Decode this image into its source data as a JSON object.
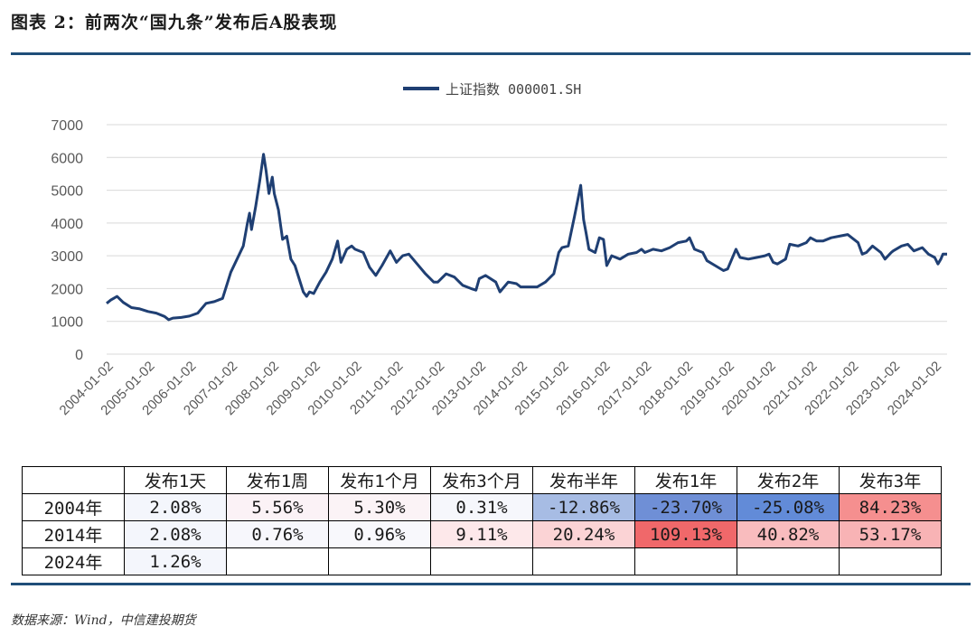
{
  "figure_title": "图表 2：前两次“国九条”发布后A股表现",
  "source": "数据来源：Wind，中信建投期货",
  "chart_data": {
    "type": "line",
    "series_name": "上证指数 000001.SH",
    "line_color": "#1f3f73",
    "ylim": [
      0,
      7000
    ],
    "y_ticks": [
      "0",
      "1000",
      "2000",
      "3000",
      "4000",
      "5000",
      "6000",
      "7000"
    ],
    "x_range": [
      2004.0,
      2024.3
    ],
    "x_ticks": [
      "2004-01-02",
      "2005-01-02",
      "2006-01-02",
      "2007-01-02",
      "2008-01-02",
      "2009-01-02",
      "2010-01-02",
      "2011-01-02",
      "2012-01-02",
      "2013-01-02",
      "2014-01-02",
      "2015-01-02",
      "2016-01-02",
      "2017-01-02",
      "2018-01-02",
      "2019-01-02",
      "2020-01-02",
      "2021-01-02",
      "2022-01-02",
      "2023-01-02",
      "2024-01-02"
    ],
    "points": [
      [
        2004.0,
        1550
      ],
      [
        2004.1,
        1650
      ],
      [
        2004.25,
        1760
      ],
      [
        2004.4,
        1580
      ],
      [
        2004.6,
        1420
      ],
      [
        2004.8,
        1380
      ],
      [
        2005.0,
        1300
      ],
      [
        2005.2,
        1250
      ],
      [
        2005.4,
        1150
      ],
      [
        2005.5,
        1050
      ],
      [
        2005.6,
        1100
      ],
      [
        2005.8,
        1120
      ],
      [
        2006.0,
        1160
      ],
      [
        2006.2,
        1250
      ],
      [
        2006.4,
        1550
      ],
      [
        2006.6,
        1600
      ],
      [
        2006.8,
        1700
      ],
      [
        2007.0,
        2500
      ],
      [
        2007.15,
        2900
      ],
      [
        2007.3,
        3300
      ],
      [
        2007.4,
        4000
      ],
      [
        2007.45,
        4300
      ],
      [
        2007.5,
        3800
      ],
      [
        2007.6,
        4500
      ],
      [
        2007.7,
        5300
      ],
      [
        2007.79,
        6100
      ],
      [
        2007.85,
        5600
      ],
      [
        2007.92,
        4900
      ],
      [
        2008.0,
        5400
      ],
      [
        2008.05,
        4900
      ],
      [
        2008.15,
        4400
      ],
      [
        2008.25,
        3500
      ],
      [
        2008.35,
        3600
      ],
      [
        2008.45,
        2900
      ],
      [
        2008.55,
        2700
      ],
      [
        2008.65,
        2300
      ],
      [
        2008.75,
        1900
      ],
      [
        2008.83,
        1760
      ],
      [
        2008.9,
        1900
      ],
      [
        2009.0,
        1850
      ],
      [
        2009.15,
        2200
      ],
      [
        2009.3,
        2500
      ],
      [
        2009.45,
        2900
      ],
      [
        2009.58,
        3450
      ],
      [
        2009.66,
        2800
      ],
      [
        2009.8,
        3200
      ],
      [
        2009.92,
        3300
      ],
      [
        2010.0,
        3200
      ],
      [
        2010.2,
        3100
      ],
      [
        2010.35,
        2650
      ],
      [
        2010.5,
        2400
      ],
      [
        2010.65,
        2700
      ],
      [
        2010.85,
        3150
      ],
      [
        2011.0,
        2800
      ],
      [
        2011.15,
        3000
      ],
      [
        2011.3,
        3050
      ],
      [
        2011.5,
        2750
      ],
      [
        2011.7,
        2450
      ],
      [
        2011.9,
        2200
      ],
      [
        2012.0,
        2200
      ],
      [
        2012.2,
        2450
      ],
      [
        2012.4,
        2350
      ],
      [
        2012.6,
        2100
      ],
      [
        2012.8,
        2000
      ],
      [
        2012.92,
        1950
      ],
      [
        2013.0,
        2300
      ],
      [
        2013.15,
        2400
      ],
      [
        2013.4,
        2200
      ],
      [
        2013.5,
        1900
      ],
      [
        2013.7,
        2200
      ],
      [
        2013.9,
        2150
      ],
      [
        2014.0,
        2050
      ],
      [
        2014.2,
        2050
      ],
      [
        2014.4,
        2050
      ],
      [
        2014.6,
        2200
      ],
      [
        2014.8,
        2450
      ],
      [
        2014.92,
        3100
      ],
      [
        2015.0,
        3250
      ],
      [
        2015.15,
        3300
      ],
      [
        2015.3,
        4200
      ],
      [
        2015.45,
        5150
      ],
      [
        2015.52,
        4100
      ],
      [
        2015.58,
        3700
      ],
      [
        2015.65,
        3200
      ],
      [
        2015.8,
        3100
      ],
      [
        2015.9,
        3550
      ],
      [
        2016.0,
        3500
      ],
      [
        2016.08,
        2700
      ],
      [
        2016.2,
        3000
      ],
      [
        2016.4,
        2900
      ],
      [
        2016.6,
        3050
      ],
      [
        2016.8,
        3100
      ],
      [
        2016.92,
        3200
      ],
      [
        2017.0,
        3100
      ],
      [
        2017.2,
        3200
      ],
      [
        2017.4,
        3150
      ],
      [
        2017.6,
        3250
      ],
      [
        2017.8,
        3400
      ],
      [
        2018.0,
        3450
      ],
      [
        2018.08,
        3550
      ],
      [
        2018.2,
        3200
      ],
      [
        2018.4,
        3100
      ],
      [
        2018.5,
        2850
      ],
      [
        2018.7,
        2700
      ],
      [
        2018.9,
        2550
      ],
      [
        2019.0,
        2600
      ],
      [
        2019.2,
        3200
      ],
      [
        2019.3,
        2950
      ],
      [
        2019.5,
        2900
      ],
      [
        2019.7,
        2950
      ],
      [
        2019.9,
        3000
      ],
      [
        2020.0,
        3050
      ],
      [
        2020.1,
        2800
      ],
      [
        2020.2,
        2750
      ],
      [
        2020.4,
        2900
      ],
      [
        2020.5,
        3350
      ],
      [
        2020.7,
        3300
      ],
      [
        2020.9,
        3400
      ],
      [
        2021.0,
        3550
      ],
      [
        2021.15,
        3450
      ],
      [
        2021.3,
        3450
      ],
      [
        2021.5,
        3550
      ],
      [
        2021.7,
        3600
      ],
      [
        2021.9,
        3650
      ],
      [
        2022.0,
        3550
      ],
      [
        2022.15,
        3400
      ],
      [
        2022.25,
        3050
      ],
      [
        2022.35,
        3100
      ],
      [
        2022.5,
        3300
      ],
      [
        2022.7,
        3100
      ],
      [
        2022.8,
        2900
      ],
      [
        2022.95,
        3100
      ],
      [
        2023.0,
        3150
      ],
      [
        2023.2,
        3300
      ],
      [
        2023.35,
        3350
      ],
      [
        2023.5,
        3150
      ],
      [
        2023.7,
        3250
      ],
      [
        2023.85,
        3050
      ],
      [
        2024.0,
        2950
      ],
      [
        2024.08,
        2750
      ],
      [
        2024.15,
        2900
      ],
      [
        2024.2,
        3050
      ],
      [
        2024.3,
        3050
      ]
    ]
  },
  "table": {
    "headers": [
      "",
      "发布1天",
      "发布1周",
      "发布1个月",
      "发布3个月",
      "发布半年",
      "发布1年",
      "发布2年",
      "发布3年"
    ],
    "rows": [
      {
        "label": "2004年",
        "cells": [
          "2.08%",
          "5.56%",
          "5.30%",
          "0.31%",
          "-12.86%",
          "-23.70%",
          "-25.08%",
          "84.23%"
        ],
        "colors": [
          "#f4f6fc",
          "#fbf2f6",
          "#fbf3f6",
          "#f6f7fc",
          "#a7bce4",
          "#6f8fd6",
          "#628bd8",
          "#f58f8f"
        ]
      },
      {
        "label": "2014年",
        "cells": [
          "2.08%",
          "0.76%",
          "0.96%",
          "9.11%",
          "20.24%",
          "109.13%",
          "40.82%",
          "53.17%"
        ],
        "colors": [
          "#f4f6fc",
          "#f7f7fc",
          "#f8f8fc",
          "#fde8ea",
          "#fbd3d5",
          "#f0686a",
          "#f9bcbe",
          "#f8b3b5"
        ]
      },
      {
        "label": "2024年",
        "cells": [
          "1.26%",
          "",
          "",
          "",
          "",
          "",
          "",
          ""
        ],
        "colors": [
          "#f4f6fc",
          "#ffffff",
          "#ffffff",
          "#ffffff",
          "#ffffff",
          "#ffffff",
          "#ffffff",
          "#ffffff"
        ]
      }
    ]
  }
}
